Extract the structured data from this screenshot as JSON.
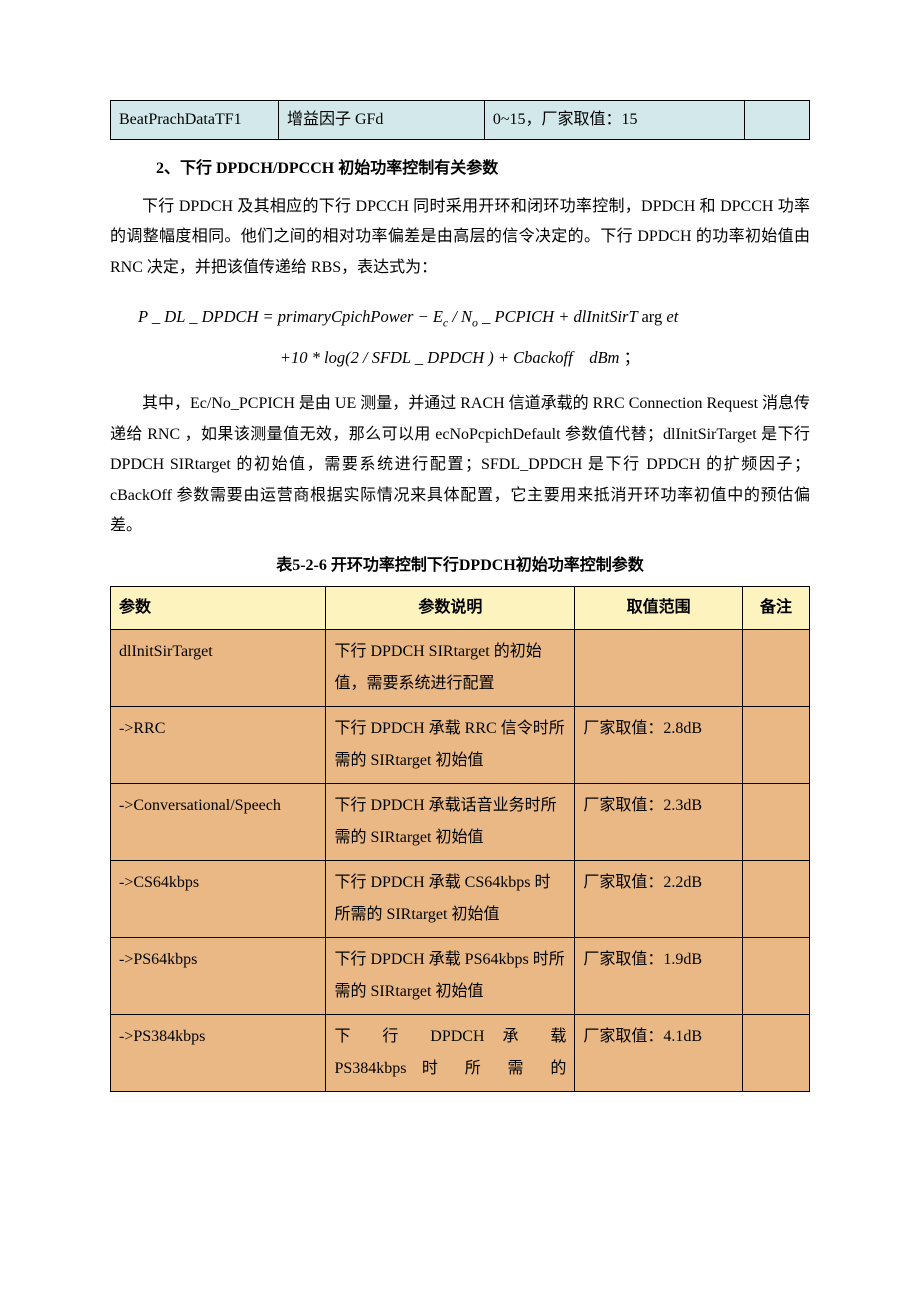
{
  "topTable": {
    "colWidths": [
      "155px",
      "190px",
      "240px",
      "60px"
    ],
    "cells": [
      "BeatPrachDataTF1",
      "增益因子 GFd",
      "0~15，厂家取值：15",
      ""
    ]
  },
  "heading": "2、下行 DPDCH/DPCCH 初始功率控制有关参数",
  "para1": "下行 DPDCH 及其相应的下行 DPCCH 同时采用开环和闭环功率控制，DPDCH 和 DPCCH 功率的调整幅度相同。他们之间的相对功率偏差是由高层的信令决定的。下行 DPDCH 的功率初始值由 RNC 决定，并把该值传递给 RBS，表达式为：",
  "formula": {
    "line1_html": "P _ DL _ DPDCH = primaryCpichPower − E<span class='sub'>c</span> / N<span class='sub'>o</span> _ PCPICH + dlInitSirT <span class='rm'>arg</span> et",
    "line2_html": "+10 * log(2 / SFDL _ DPDCH ) + Cbackoff &nbsp;&nbsp; dBm <span class='rm'>；</span>"
  },
  "para2": "其中，Ec/No_PCPICH 是由 UE 测量，并通过 RACH 信道承载的 RRC Connection Request 消息传递给 RNC ，如果该测量值无效，那么可以用 ecNoPcpichDefault 参数值代替；dlInitSirTarget 是下行 DPDCH SIRtarget 的初始值，需要系统进行配置；SFDL_DPDCH 是下行 DPDCH 的扩频因子；cBackOff 参数需要由运营商根据实际情况来具体配置，它主要用来抵消开环功率初值中的预估偏差。",
  "caption": "表5-2-6  开环功率控制下行DPDCH初始功率控制参数",
  "mainTable": {
    "headers": [
      "参数",
      "参数说明",
      "取值范围",
      "备注"
    ],
    "rows": [
      {
        "c1": "dlInitSirTarget",
        "c2": "下行 DPDCH SIRtarget 的初始值，需要系统进行配置",
        "c3": "",
        "c4": ""
      },
      {
        "c1": "->RRC",
        "c2": "下行 DPDCH 承载 RRC 信令时所需的 SIRtarget 初始值",
        "c3": "厂家取值：2.8dB",
        "c4": ""
      },
      {
        "c1": "->Conversational/Speech",
        "c2": "下行 DPDCH 承载话音业务时所需的 SIRtarget 初始值",
        "c3": "厂家取值：2.3dB",
        "c4": ""
      },
      {
        "c1": "->CS64kbps",
        "c2": "下行 DPDCH 承载 CS64kbps 时所需的 SIRtarget 初始值",
        "c3": "厂家取值：2.2dB",
        "c4": ""
      },
      {
        "c1": "->PS64kbps",
        "c2": "下行 DPDCH 承载 PS64kbps 时所需的 SIRtarget 初始值",
        "c3": "厂家取值：1.9dB",
        "c4": ""
      },
      {
        "c1": "->PS384kbps",
        "c2_html": "<span class='justify-last' style='display:inline-block;width:100%'>下 行 DPDCH 承 载</span><br><span class='justify-last' style='display:inline-block;width:100%'>PS384kbps 时 所 需 的</span>",
        "c3": "厂家取值：4.1dB",
        "c4": ""
      }
    ]
  }
}
